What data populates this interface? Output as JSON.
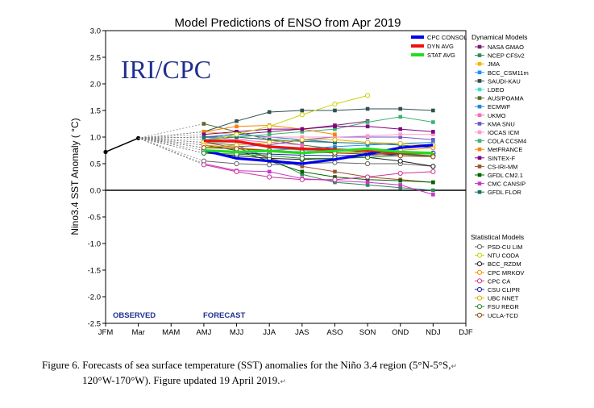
{
  "chart_data": {
    "type": "line",
    "title": "Model Predictions of ENSO from Apr 2019",
    "ylabel": "Nino3.4 SST Anomaly ( °C)",
    "xlabel": "",
    "categories": [
      "JFM",
      "Mar",
      "MAM",
      "AMJ",
      "MJJ",
      "JJA",
      "JAS",
      "ASO",
      "SON",
      "OND",
      "NDJ",
      "DJF"
    ],
    "ylim": [
      -2.5,
      3.0
    ],
    "yticks": [
      "3.0",
      "2.5",
      "2.0",
      "1.5",
      "1.0",
      "0.5",
      "0.0",
      "-0.5",
      "-1.0",
      "-1.5",
      "-2.0",
      "-2.5"
    ],
    "watermark": "IRI/CPC",
    "observed_label": "OBSERVED",
    "forecast_label": "FORECAST",
    "observed": [
      0.72,
      0.98
    ],
    "averages": [
      {
        "name": "CPC CONSOL",
        "color": "#0000ee",
        "values": [
          0.75,
          0.6,
          0.55,
          0.5,
          0.58,
          0.68,
          0.8,
          0.85
        ]
      },
      {
        "name": "DYN AVG",
        "color": "#ee1111",
        "values": [
          0.93,
          0.92,
          0.82,
          0.78,
          0.76,
          0.75,
          0.7,
          0.7
        ]
      },
      {
        "name": "STAT AVG",
        "color": "#22dd22",
        "values": [
          0.75,
          0.72,
          0.74,
          0.7,
          0.74,
          0.78,
          0.72,
          0.7
        ]
      }
    ],
    "dynamical_title": "Dynamical Models",
    "dynamical": [
      {
        "name": "NASA GMAO",
        "color": "#7a1f6e",
        "values": [
          1.0,
          1.05,
          1.1,
          1.15,
          1.22,
          1.3
        ]
      },
      {
        "name": "NCEP CFSv2",
        "color": "#2e8b57",
        "values": [
          0.9,
          0.85,
          0.6,
          0.3,
          0.15,
          0.1,
          0.05,
          0.0
        ]
      },
      {
        "name": "JMA",
        "color": "#f0b400",
        "values": [
          1.1,
          1.05,
          1.0,
          0.95,
          0.9
        ]
      },
      {
        "name": "BCC_CSM11m",
        "color": "#1e90ff",
        "values": [
          0.85,
          0.8,
          0.75,
          0.78,
          0.82,
          0.85,
          0.88,
          0.9
        ]
      },
      {
        "name": "SAUDI-KAU",
        "color": "#2f4f4f",
        "values": [
          1.1,
          1.3,
          1.47,
          1.5,
          1.5,
          1.53,
          1.53,
          1.5
        ]
      },
      {
        "name": "LDEO",
        "color": "#40e0d0",
        "values": [
          1.0,
          0.9,
          0.8,
          0.75,
          0.7,
          0.7,
          0.68,
          0.65
        ]
      },
      {
        "name": "AUS/POAMA",
        "color": "#556b2f",
        "values": [
          1.25,
          1.1,
          0.95,
          0.85,
          0.78,
          0.7,
          0.68,
          0.65
        ]
      },
      {
        "name": "ECMWF",
        "color": "#1e88e5",
        "values": [
          1.0,
          1.05,
          1.0,
          0.95,
          0.9
        ]
      },
      {
        "name": "UKMO",
        "color": "#ff69b4",
        "values": [
          1.0,
          0.95,
          0.9,
          0.85
        ]
      },
      {
        "name": "KMA SNU",
        "color": "#6a5acd",
        "values": [
          0.8,
          0.82,
          0.85,
          0.95,
          1.0,
          1.0,
          1.0,
          0.95
        ]
      },
      {
        "name": "IOCAS ICM",
        "color": "#ff99cc",
        "values": [
          0.9,
          0.95,
          1.0,
          1.0,
          1.0,
          1.02,
          1.05,
          1.05
        ]
      },
      {
        "name": "COLA CCSM4",
        "color": "#3cb371",
        "values": [
          0.95,
          1.0,
          1.05,
          1.1,
          1.15,
          1.28,
          1.38,
          1.28
        ]
      },
      {
        "name": "MetFRANCE",
        "color": "#ff7f00",
        "values": [
          1.1,
          1.2,
          1.22,
          1.15,
          1.05
        ]
      },
      {
        "name": "SINTEX-F",
        "color": "#800080",
        "values": [
          1.05,
          1.1,
          1.15,
          1.15,
          1.2,
          1.2,
          1.15,
          1.1
        ]
      },
      {
        "name": "CS-IRI-MM",
        "color": "#a0522d",
        "values": [
          0.9,
          0.8,
          0.6,
          0.45,
          0.35,
          0.25,
          0.2,
          0.15
        ]
      },
      {
        "name": "GFDL CM2.1",
        "color": "#006400",
        "values": [
          0.85,
          0.75,
          0.55,
          0.35,
          0.25,
          0.2,
          0.18,
          0.15
        ]
      },
      {
        "name": "CMC CANSIP",
        "color": "#cc33cc",
        "values": [
          0.5,
          0.37,
          0.35,
          0.22,
          0.18,
          0.15,
          0.1,
          -0.08
        ]
      },
      {
        "name": "GFDL FLOR",
        "color": "#1b6e6e",
        "values": [
          1.0,
          1.0,
          0.95,
          0.92,
          0.9,
          0.88,
          0.85,
          0.8
        ]
      }
    ],
    "statistical_title": "Statistical Models",
    "statistical": [
      {
        "name": "PSD-CU LIM",
        "color": "#666666",
        "values": [
          0.55,
          0.5,
          0.48,
          0.5,
          0.52,
          0.5,
          0.5,
          0.45
        ]
      },
      {
        "name": "NTU CODA",
        "color": "#c8d400",
        "values": [
          0.9,
          1.05,
          1.2,
          1.42,
          1.62,
          1.78
        ]
      },
      {
        "name": "BCC_RZDM",
        "color": "#222222",
        "values": [
          0.7,
          0.65,
          0.6,
          0.58,
          0.6,
          0.62,
          0.55,
          0.45
        ]
      },
      {
        "name": "CPC MRKOV",
        "color": "#ff8c00",
        "values": [
          0.85,
          0.8,
          0.75,
          0.72,
          0.7,
          0.72,
          0.75,
          0.8
        ]
      },
      {
        "name": "CPC CA",
        "color": "#cc3399",
        "values": [
          0.48,
          0.35,
          0.25,
          0.2,
          0.2,
          0.25,
          0.32,
          0.35
        ]
      },
      {
        "name": "CSU CLIPR",
        "color": "#2222aa",
        "values": [
          0.75,
          0.7,
          0.68,
          0.66,
          0.65,
          0.66,
          0.68,
          0.7
        ]
      },
      {
        "name": "UBC NNET",
        "color": "#e0b000",
        "values": [
          0.8,
          0.85,
          0.9,
          0.95,
          0.95,
          0.9,
          0.88,
          0.85
        ]
      },
      {
        "name": "FSU REGR",
        "color": "#228b22",
        "values": [
          0.7,
          0.68,
          0.65,
          0.6,
          0.6,
          0.62,
          0.65,
          0.65
        ]
      },
      {
        "name": "UCLA-TCD",
        "color": "#8b4513",
        "values": [
          0.8,
          0.78,
          0.75,
          0.72,
          0.7,
          0.68,
          0.65,
          0.63
        ]
      }
    ]
  },
  "caption": {
    "line1": "Figure 6. Forecasts of sea surface temperature (SST) anomalies for the Niño 3.4 region (5°N-5°S,",
    "line2": "120°W-170°W). Figure updated 19 April 2019.",
    "return_mark": "↵"
  }
}
